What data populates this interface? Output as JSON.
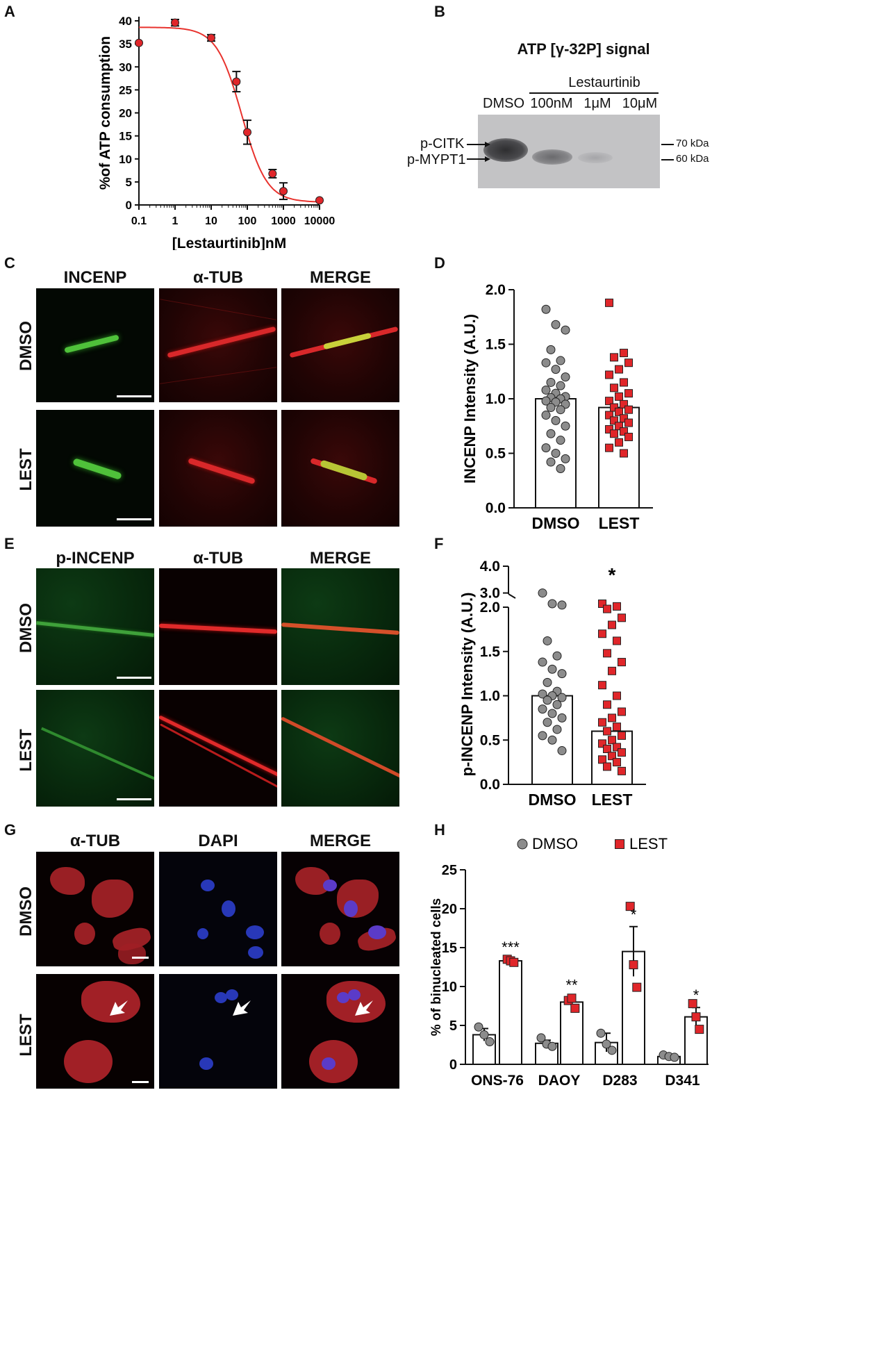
{
  "panels": {
    "A": {
      "letter": "A",
      "chart_data": {
        "type": "scatter",
        "xscale": "log",
        "x": [
          0.1,
          1,
          10,
          50,
          100,
          500,
          1000,
          10000
        ],
        "y": [
          35.2,
          39.6,
          36.3,
          26.8,
          15.8,
          6.8,
          3.0,
          1.0
        ],
        "err": [
          0,
          0.7,
          0.7,
          2.2,
          2.6,
          0.9,
          1.8,
          0
        ],
        "fit": {
          "top": 38.6,
          "bottom": 0.6,
          "ic50": 70,
          "hill": 1.25
        },
        "xticks": [
          "0.1",
          "1",
          "10",
          "100",
          "1000",
          "10000"
        ],
        "yticks": [
          "0",
          "5",
          "10",
          "15",
          "20",
          "25",
          "30",
          "35",
          "40"
        ],
        "xlim": [
          0.1,
          10000
        ],
        "ylim": [
          0,
          40
        ],
        "xlabel": "[Lestaurtinib]nM",
        "ylabel": "%of ATP consumption",
        "colors": {
          "point": "#e0262a",
          "fit": "#e8322d"
        }
      }
    },
    "B": {
      "letter": "B",
      "title": "ATP [γ-32P] signal",
      "group_label": "Lestaurtinib",
      "lanes": [
        "DMSO",
        "100nM",
        "1μM",
        "10μM"
      ],
      "left_labels": [
        "p-CITK",
        "p-MYPT1"
      ],
      "markers": [
        "70 kDa",
        "60 kDa"
      ]
    },
    "C": {
      "letter": "C",
      "columns": [
        "INCENP",
        "α-TUB",
        "MERGE"
      ],
      "rows": [
        "DMSO",
        "LEST"
      ]
    },
    "D": {
      "letter": "D",
      "chart_data": {
        "type": "bar",
        "categories": [
          "DMSO",
          "LEST"
        ],
        "values": [
          1.0,
          0.92
        ],
        "ylabel": "INCENP Intensity (A.U.)",
        "yticks": [
          "0.0",
          "0.5",
          "1.0",
          "1.5",
          "2.0"
        ],
        "ylim": [
          0,
          2.0
        ],
        "points": [
          [
            1.82,
            1.68,
            1.63,
            1.45,
            1.35,
            1.33,
            1.27,
            1.2,
            1.15,
            1.12,
            1.08,
            1.05,
            1.02,
            1.01,
            1.0,
            0.98,
            0.97,
            0.95,
            0.92,
            0.9,
            0.85,
            0.8,
            0.75,
            0.68,
            0.62,
            0.55,
            0.5,
            0.45,
            0.42,
            0.36
          ],
          [
            1.88,
            1.42,
            1.38,
            1.33,
            1.27,
            1.22,
            1.15,
            1.1,
            1.05,
            1.02,
            0.98,
            0.95,
            0.92,
            0.9,
            0.88,
            0.85,
            0.82,
            0.8,
            0.78,
            0.75,
            0.72,
            0.7,
            0.68,
            0.65,
            0.6,
            0.55,
            0.5
          ]
        ],
        "colors": {
          "DMSO": "#8c8c8c",
          "LEST": "#e0262a"
        }
      }
    },
    "E": {
      "letter": "E",
      "columns": [
        "p-INCENP",
        "α-TUB",
        "MERGE"
      ],
      "rows": [
        "DMSO",
        "LEST"
      ]
    },
    "F": {
      "letter": "F",
      "chart_data": {
        "type": "bar",
        "categories": [
          "DMSO",
          "LEST"
        ],
        "values": [
          1.0,
          0.6
        ],
        "ylabel": "p-INCENP Intensity (A.U.)",
        "yticks": [
          "0.0",
          "0.5",
          "1.0",
          "1.5",
          "2.0",
          "3.0",
          "4.0"
        ],
        "axis_break": [
          2.0,
          2.6
        ],
        "significance": "*",
        "points": [
          [
            3.0,
            2.6,
            2.55,
            1.62,
            1.45,
            1.38,
            1.3,
            1.25,
            1.15,
            1.05,
            1.02,
            1.0,
            0.98,
            0.95,
            0.9,
            0.85,
            0.8,
            0.75,
            0.7,
            0.62,
            0.55,
            0.5,
            0.38
          ],
          [
            2.6,
            2.5,
            1.98,
            1.88,
            1.8,
            1.7,
            1.62,
            1.48,
            1.38,
            1.28,
            1.12,
            1.0,
            0.9,
            0.82,
            0.75,
            0.7,
            0.65,
            0.6,
            0.55,
            0.5,
            0.46,
            0.42,
            0.4,
            0.36,
            0.32,
            0.28,
            0.25,
            0.2,
            0.15
          ]
        ],
        "colors": {
          "DMSO": "#8c8c8c",
          "LEST": "#e0262a"
        }
      }
    },
    "G": {
      "letter": "G",
      "columns": [
        "α-TUB",
        "DAPI",
        "MERGE"
      ],
      "rows": [
        "DMSO",
        "LEST"
      ]
    },
    "H": {
      "letter": "H",
      "chart_data": {
        "type": "bar",
        "categories": [
          "ONS-76",
          "DAOY",
          "D283",
          "D341"
        ],
        "series": [
          {
            "name": "DMSO",
            "values": [
              3.8,
              2.7,
              2.8,
              1.0
            ],
            "sem": [
              0.8,
              0.4,
              1.2,
              0.2
            ],
            "points": [
              [
                4.8,
                3.8,
                2.9
              ],
              [
                3.4,
                2.6,
                2.3
              ],
              [
                4.0,
                2.6,
                1.8
              ],
              [
                1.2,
                1.0,
                0.9
              ]
            ]
          },
          {
            "name": "LEST",
            "values": [
              13.3,
              8.0,
              14.5,
              6.1
            ],
            "sem": [
              0.2,
              0.6,
              3.2,
              1.2
            ],
            "points": [
              [
                13.5,
                13.3,
                13.1
              ],
              [
                8.2,
                8.5,
                7.2
              ],
              [
                20.3,
                12.8,
                9.9
              ],
              [
                7.8,
                6.1,
                4.5
              ]
            ]
          }
        ],
        "significance": [
          "***",
          "**",
          "*",
          "*"
        ],
        "ylabel": "% of binucleated cells",
        "yticks": [
          "0",
          "5",
          "10",
          "15",
          "20",
          "25"
        ],
        "ylim": [
          0,
          25
        ],
        "legend": [
          "DMSO",
          "LEST"
        ],
        "colors": {
          "DMSO": "#8c8c8c",
          "LEST": "#e0262a"
        }
      }
    }
  }
}
